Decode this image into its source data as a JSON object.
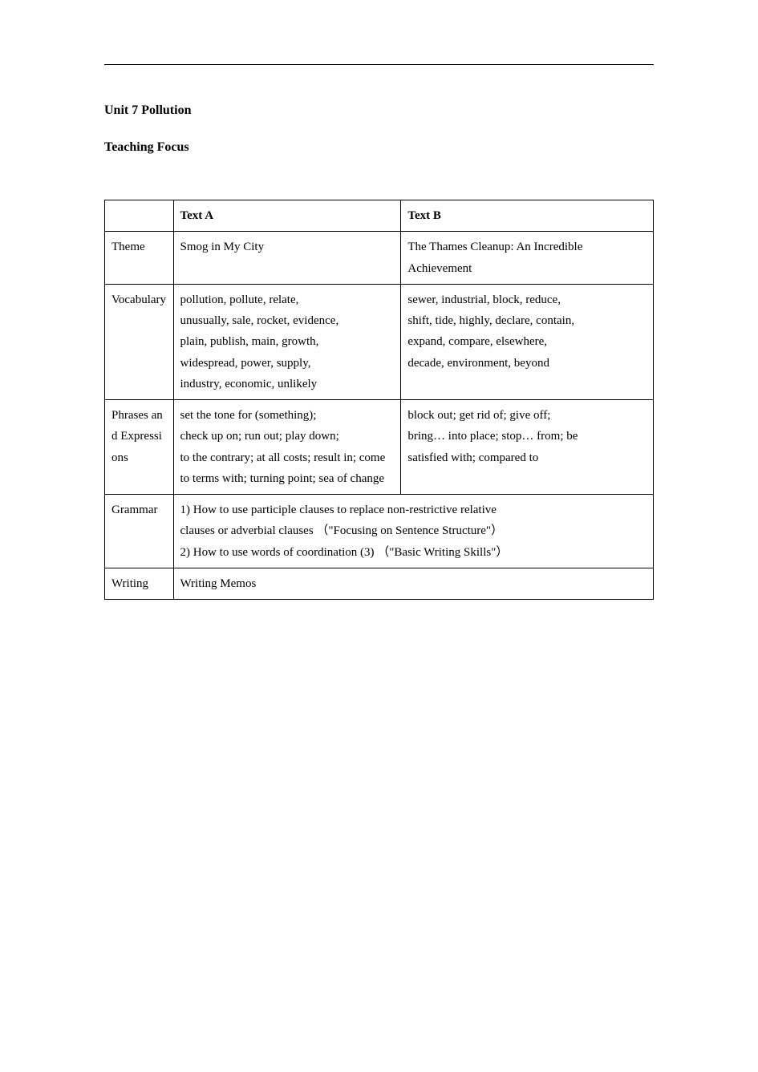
{
  "heading": {
    "unit": "Unit 7 Pollution",
    "focus": "Teaching Focus"
  },
  "table": {
    "header": {
      "blank": "",
      "colA": "Text A",
      "colB": "Text B"
    },
    "rows": {
      "theme": {
        "label": "Theme",
        "a": "Smog in My City",
        "b": "The Thames Cleanup: An Incredible\nAchievement"
      },
      "vocab": {
        "label": "Vocabulary",
        "a": "pollution, pollute, relate,\nunusually, sale, rocket, evidence,\nplain, publish, main, growth,\nwidespread, power, supply,\nindustry, economic, unlikely",
        "b": "sewer, industrial, block, reduce,\nshift, tide, highly, declare, contain,\nexpand, compare, elsewhere,\ndecade, environment, beyond"
      },
      "phrases": {
        "label": "Phrases and Expressions",
        "a": "set the tone for (something);\ncheck up on; run out; play down;\nto the contrary; at all costs; result in; come\nto terms with; turning point; sea of change",
        "b": "block out; get rid of; give off;\nbring… into place; stop… from; be\nsatisfied with; compared to"
      },
      "grammar": {
        "label": "Grammar",
        "merged": "1) How to use participle clauses to replace non-restrictive relative\n  clauses or adverbial clauses （\"Focusing on Sentence Structure\"）\n2) How to use words of coordination (3) （\"Basic Writing Skills\"）"
      },
      "writing": {
        "label": "Writing",
        "merged": "Writing Memos"
      }
    }
  },
  "style": {
    "background": "#ffffff",
    "text_color": "#000000",
    "border_color": "#000000",
    "body_fontsize": 15,
    "title_fontsize": 16,
    "line_height": 1.75
  }
}
